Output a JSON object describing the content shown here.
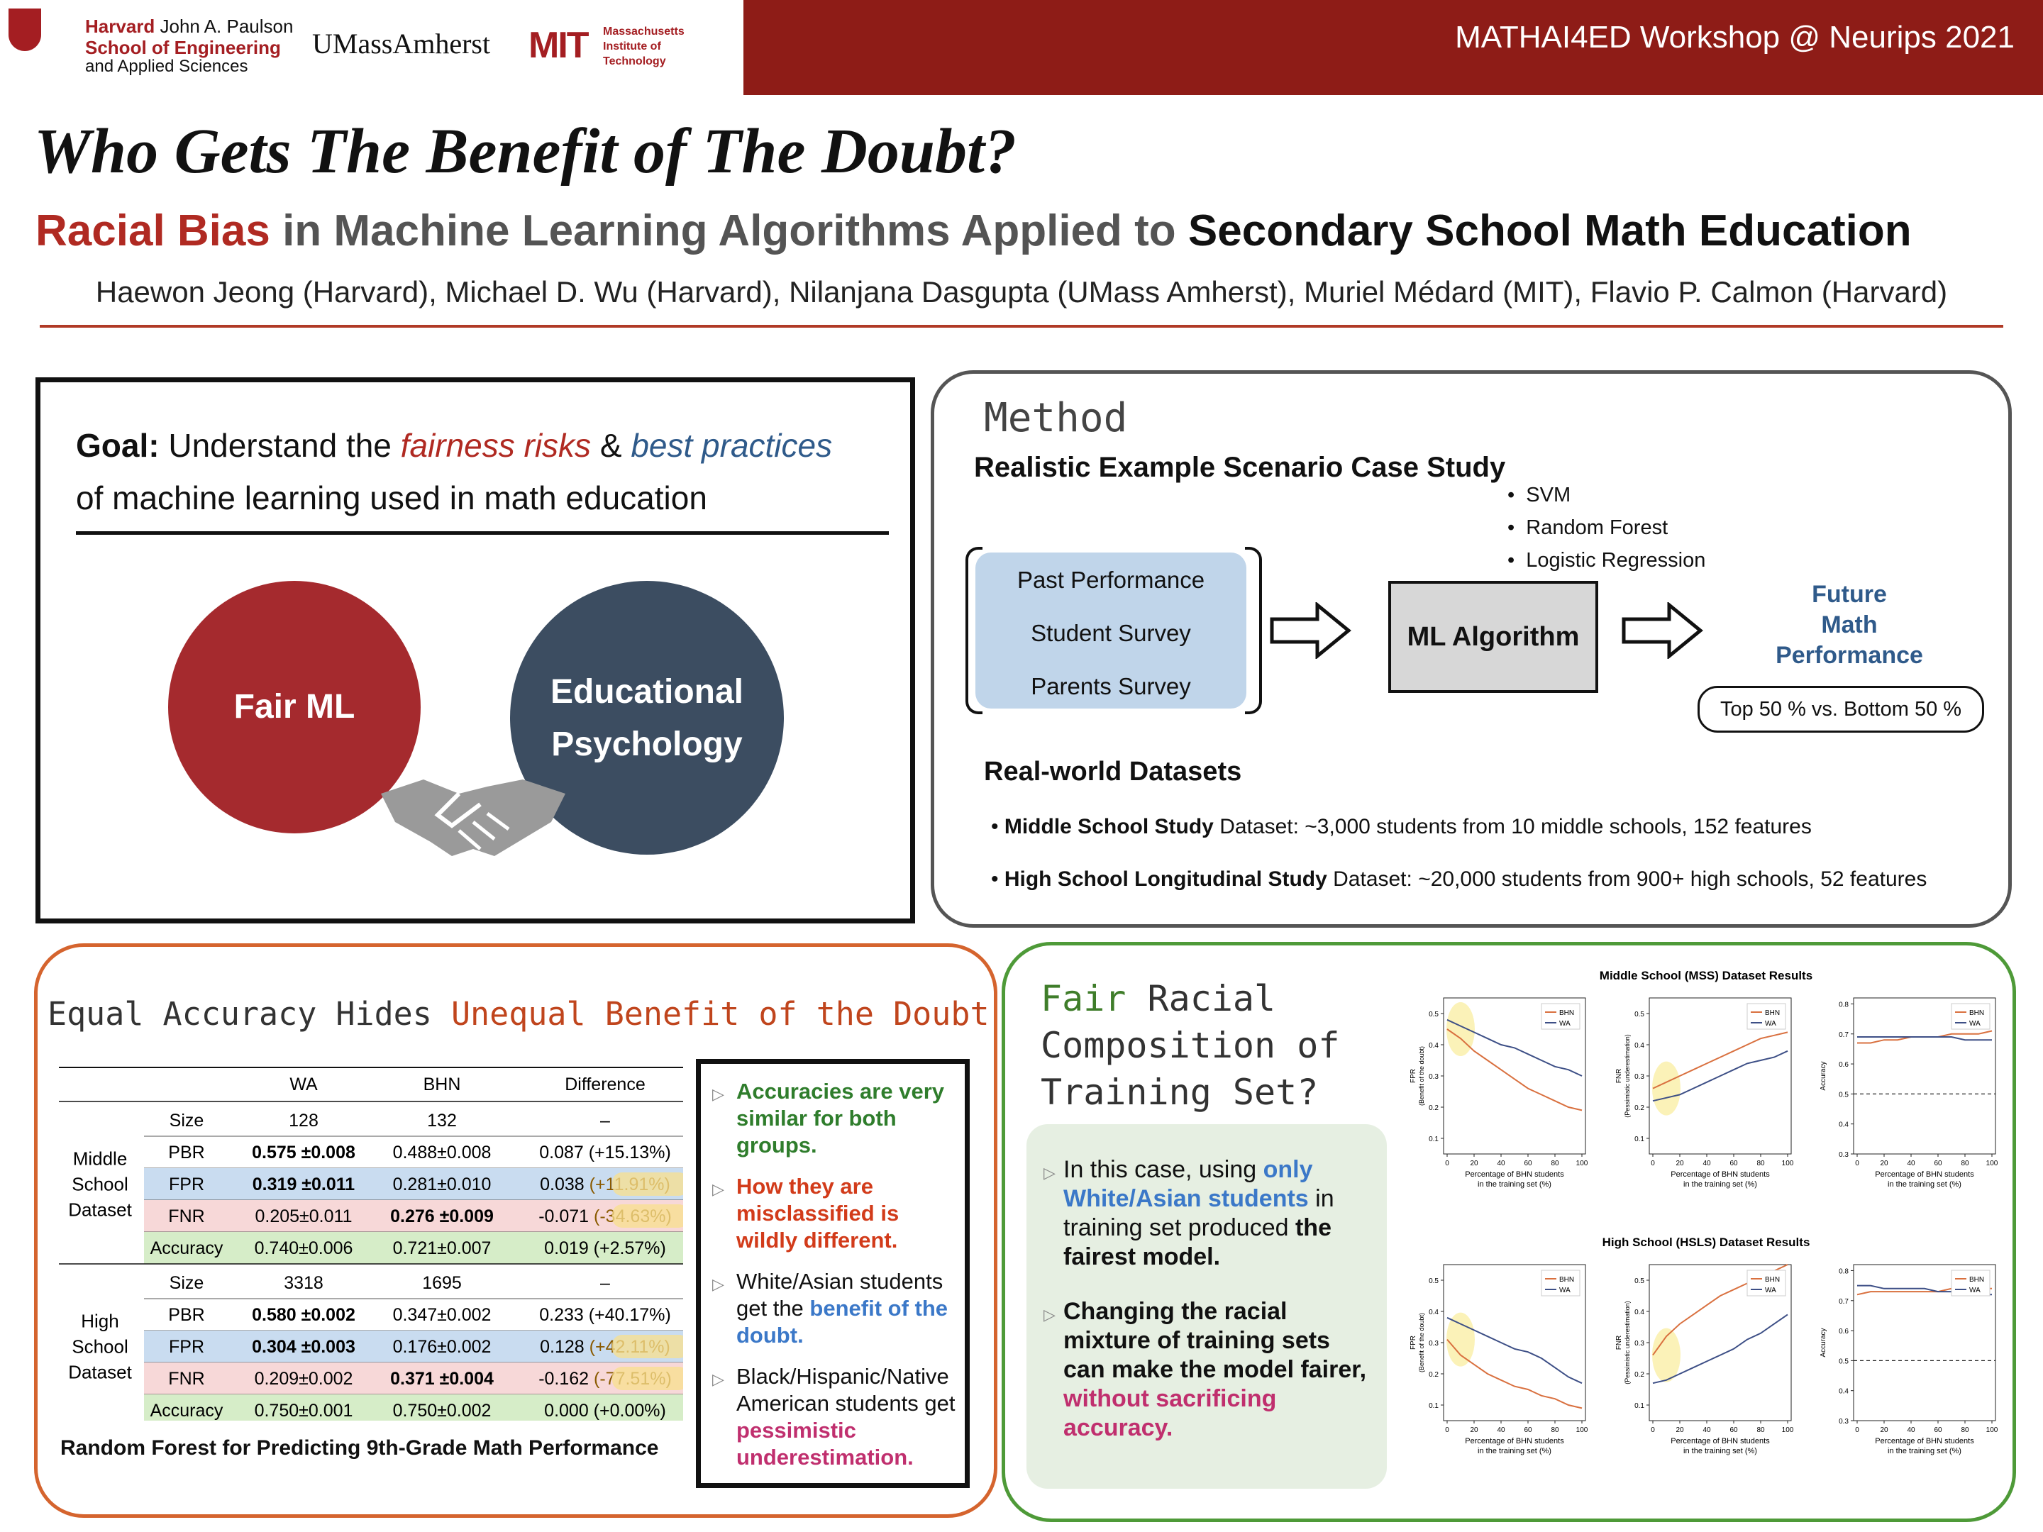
{
  "header": {
    "harvard_line1_bold": "Harvard",
    "harvard_line1_rest": "John A. Paulson",
    "harvard_line2": "School of Engineering",
    "harvard_line3": "and Applied Sciences",
    "umass": "UMassAmherst",
    "mit_mark": "MIT",
    "mit_text": [
      "Massachusetts",
      "Institute of",
      "Technology"
    ],
    "workshop": "MATHAI4ED Workshop @ Neurips 2021",
    "band_color": "#8e1c17"
  },
  "title": "Who Gets The Benefit of The Doubt?",
  "subtitle": {
    "part1": "Racial Bias",
    "part2": " in Machine Learning Algorithms Applied to ",
    "part3": "Secondary School Math Education"
  },
  "authors": "Haewon Jeong (Harvard), Michael D. Wu (Harvard), Nilanjana Dasgupta (UMass Amherst), Muriel Médard (MIT), Flavio P. Calmon (Harvard)",
  "goal": {
    "label": "Goal:",
    "text1": " Understand the ",
    "fairness": "fairness risks",
    "amp": " & ",
    "best": "best practices",
    "text2": "of machine learning used in math education",
    "circle1": "Fair ML",
    "circle2_line1": "Educational",
    "circle2_line2": "Psychology",
    "icon": "handshake-icon"
  },
  "method": {
    "title": "Method",
    "scenario": "Realistic Example Scenario Case Study",
    "inputs": [
      "Past Performance",
      "Student Survey",
      "Parents Survey"
    ],
    "algorithm": "ML Algorithm",
    "algorithms": [
      "SVM",
      "Random Forest",
      "Logistic Regression"
    ],
    "future": [
      "Future",
      "Math",
      "Performance"
    ],
    "topbottom": "Top 50 % vs. Bottom 50 %",
    "datasets_title": "Real-world Datasets",
    "ds1_bold": "Middle School Study",
    "ds1_rest": " Dataset: ~3,000 students from 10 middle schools, 152 features",
    "ds2_bold": "High School Longitudinal Study",
    "ds2_rest": " Dataset: ~20,000 students from 900+ high schools, 52 features"
  },
  "equal": {
    "title_part1": "Equal Accuracy Hides ",
    "title_part2": "Unequal Benefit of the Doubt",
    "caption": "Random Forest for Predicting 9th-Grade Math Performance",
    "table": {
      "columns": [
        "WA",
        "BHN",
        "Difference"
      ],
      "groups": [
        {
          "name": [
            "Middle",
            "School",
            "Dataset"
          ],
          "rows": [
            {
              "label": "Size",
              "wa": "128",
              "bhn": "132",
              "diff": "–",
              "diffpct": "",
              "bold": "",
              "color": "none"
            },
            {
              "label": "PBR",
              "wa": "0.575 ±0.008",
              "bhn": "0.488±0.008",
              "diff": "0.087 (+15.13%)",
              "diffpct": "",
              "bold": "wa",
              "color": "none"
            },
            {
              "label": "FPR",
              "wa": "0.319 ±0.011",
              "bhn": "0.281±0.010",
              "diff": "0.038 ",
              "diffpct": "(+11.91%)",
              "bold": "wa",
              "color": "blue"
            },
            {
              "label": "FNR",
              "wa": "0.205±0.011",
              "bhn": "0.276 ±0.009",
              "diff": "-0.071 ",
              "diffpct": "(-34.63%)",
              "bold": "bhn",
              "color": "pink"
            },
            {
              "label": "Accuracy",
              "wa": "0.740±0.006",
              "bhn": "0.721±0.007",
              "diff": "0.019 (+2.57%)",
              "diffpct": "",
              "bold": "",
              "color": "green"
            }
          ]
        },
        {
          "name": [
            "High",
            "School",
            "Dataset"
          ],
          "rows": [
            {
              "label": "Size",
              "wa": "3318",
              "bhn": "1695",
              "diff": "–",
              "diffpct": "",
              "bold": "",
              "color": "none"
            },
            {
              "label": "PBR",
              "wa": "0.580 ±0.002",
              "bhn": "0.347±0.002",
              "diff": "0.233 (+40.17%)",
              "diffpct": "",
              "bold": "wa",
              "color": "none"
            },
            {
              "label": "FPR",
              "wa": "0.304 ±0.003",
              "bhn": "0.176±0.002",
              "diff": "0.128 ",
              "diffpct": "(+42.11%)",
              "bold": "wa",
              "color": "blue"
            },
            {
              "label": "FNR",
              "wa": "0.209±0.002",
              "bhn": "0.371 ±0.004",
              "diff": "-0.162 ",
              "diffpct": "(-77.51%)",
              "bold": "bhn",
              "color": "pink"
            },
            {
              "label": "Accuracy",
              "wa": "0.750±0.001",
              "bhn": "0.750±0.002",
              "diff": "0.000 (+0.00%)",
              "diffpct": "",
              "bold": "",
              "color": "green"
            }
          ]
        }
      ]
    },
    "notes": {
      "n1": "Accuracies are very similar for both groups.",
      "n2": "How they are misclassified is wildly different.",
      "n3a": "White/Asian students get the ",
      "n3b": "benefit of the doubt.",
      "n4a": "Black/Hispanic/Native American students get ",
      "n4b": "pessimistic underestimation."
    }
  },
  "fair": {
    "title_g": "Fair",
    "title_rest1": " Racial",
    "title_rest2": "Composition of",
    "title_rest3": "Training Set?",
    "p1a": "In this case, using ",
    "p1b": "only White/Asian students",
    "p1c": " in training set produced ",
    "p1d": "the fairest model.",
    "p2a": "Changing the racial mixture of training sets can make the model fairer, ",
    "p2b": "without sacrificing accuracy."
  },
  "chart_data": [
    {
      "type": "line",
      "group_title": "Middle School (MSS) Dataset Results",
      "title": "",
      "xlabel": "Percentage of BHN students in the training set (%)",
      "ylabel": "FPR (Benefit of the doubt)",
      "x": [
        0,
        10,
        20,
        30,
        40,
        50,
        60,
        70,
        80,
        90,
        100
      ],
      "xticks": [
        0,
        20,
        40,
        60,
        80,
        100
      ],
      "yticks": [
        0.1,
        0.2,
        0.3,
        0.4,
        0.5
      ],
      "ylim": [
        0.05,
        0.55
      ],
      "series": [
        {
          "name": "BHN",
          "color": "#d9703f",
          "values": [
            0.45,
            0.42,
            0.38,
            0.35,
            0.32,
            0.29,
            0.26,
            0.24,
            0.22,
            0.2,
            0.19
          ]
        },
        {
          "name": "WA",
          "color": "#3d4f86",
          "values": [
            0.48,
            0.46,
            0.44,
            0.42,
            0.4,
            0.39,
            0.37,
            0.35,
            0.33,
            0.32,
            0.3
          ]
        }
      ],
      "legend": "top-right"
    },
    {
      "type": "line",
      "group_title": "",
      "title": "",
      "xlabel": "Percentage of BHN students in the training set (%)",
      "ylabel": "FNR (Pessimistic underestimation)",
      "x": [
        0,
        10,
        20,
        30,
        40,
        50,
        60,
        70,
        80,
        90,
        100
      ],
      "xticks": [
        0,
        20,
        40,
        60,
        80,
        100
      ],
      "yticks": [
        0.1,
        0.2,
        0.3,
        0.4,
        0.5
      ],
      "ylim": [
        0.05,
        0.55
      ],
      "series": [
        {
          "name": "BHN",
          "color": "#d9703f",
          "values": [
            0.26,
            0.28,
            0.3,
            0.32,
            0.34,
            0.36,
            0.38,
            0.4,
            0.42,
            0.43,
            0.44
          ]
        },
        {
          "name": "WA",
          "color": "#3d4f86",
          "values": [
            0.22,
            0.23,
            0.24,
            0.26,
            0.28,
            0.3,
            0.32,
            0.34,
            0.35,
            0.36,
            0.38
          ]
        }
      ],
      "legend": "top-right"
    },
    {
      "type": "line",
      "group_title": "",
      "title": "",
      "xlabel": "Percentage of BHN students in the training set (%)",
      "ylabel": "Accuracy",
      "x": [
        0,
        10,
        20,
        30,
        40,
        50,
        60,
        70,
        80,
        90,
        100
      ],
      "xticks": [
        0,
        20,
        40,
        60,
        80,
        100
      ],
      "yticks": [
        0.3,
        0.4,
        0.5,
        0.6,
        0.7,
        0.8
      ],
      "ylim": [
        0.3,
        0.82
      ],
      "baseline": 0.5,
      "series": [
        {
          "name": "BHN",
          "color": "#d9703f",
          "values": [
            0.67,
            0.67,
            0.68,
            0.68,
            0.69,
            0.69,
            0.69,
            0.7,
            0.7,
            0.7,
            0.71
          ]
        },
        {
          "name": "WA",
          "color": "#3d4f86",
          "values": [
            0.69,
            0.69,
            0.69,
            0.69,
            0.69,
            0.69,
            0.69,
            0.69,
            0.68,
            0.68,
            0.68
          ]
        }
      ],
      "legend": "top-right"
    },
    {
      "type": "line",
      "group_title": "High School (HSLS) Dataset Results",
      "title": "",
      "xlabel": "Percentage of BHN students in the training set (%)",
      "ylabel": "FPR (Benefit of the doubt)",
      "x": [
        0,
        10,
        20,
        30,
        40,
        50,
        60,
        70,
        80,
        90,
        100
      ],
      "xticks": [
        0,
        20,
        40,
        60,
        80,
        100
      ],
      "yticks": [
        0.1,
        0.2,
        0.3,
        0.4,
        0.5
      ],
      "ylim": [
        0.05,
        0.55
      ],
      "series": [
        {
          "name": "BHN",
          "color": "#d9703f",
          "values": [
            0.31,
            0.26,
            0.23,
            0.2,
            0.18,
            0.16,
            0.15,
            0.13,
            0.12,
            0.1,
            0.09
          ]
        },
        {
          "name": "WA",
          "color": "#3d4f86",
          "values": [
            0.38,
            0.36,
            0.34,
            0.32,
            0.3,
            0.28,
            0.27,
            0.25,
            0.22,
            0.19,
            0.17
          ]
        }
      ],
      "legend": "top-right"
    },
    {
      "type": "line",
      "group_title": "",
      "title": "",
      "xlabel": "Percentage of BHN students in the training set (%)",
      "ylabel": "FNR (Pessimistic underestimation)",
      "x": [
        0,
        10,
        20,
        30,
        40,
        50,
        60,
        70,
        80,
        90,
        100
      ],
      "xticks": [
        0,
        20,
        40,
        60,
        80,
        100
      ],
      "yticks": [
        0.1,
        0.2,
        0.3,
        0.4,
        0.5
      ],
      "ylim": [
        0.05,
        0.55
      ],
      "series": [
        {
          "name": "BHN",
          "color": "#d9703f",
          "values": [
            0.26,
            0.32,
            0.36,
            0.39,
            0.42,
            0.45,
            0.47,
            0.49,
            0.51,
            0.53,
            0.55
          ]
        },
        {
          "name": "WA",
          "color": "#3d4f86",
          "values": [
            0.17,
            0.18,
            0.2,
            0.22,
            0.24,
            0.26,
            0.28,
            0.31,
            0.33,
            0.36,
            0.39
          ]
        }
      ],
      "legend": "top-right"
    },
    {
      "type": "line",
      "group_title": "",
      "title": "",
      "xlabel": "Percentage of BHN students in the training set (%)",
      "ylabel": "Accuracy",
      "x": [
        0,
        10,
        20,
        30,
        40,
        50,
        60,
        70,
        80,
        90,
        100
      ],
      "xticks": [
        0,
        20,
        40,
        60,
        80,
        100
      ],
      "yticks": [
        0.3,
        0.4,
        0.5,
        0.6,
        0.7,
        0.8
      ],
      "ylim": [
        0.3,
        0.82
      ],
      "baseline": 0.5,
      "series": [
        {
          "name": "BHN",
          "color": "#d9703f",
          "values": [
            0.72,
            0.73,
            0.73,
            0.73,
            0.73,
            0.73,
            0.73,
            0.74,
            0.74,
            0.74,
            0.74
          ]
        },
        {
          "name": "WA",
          "color": "#3d4f86",
          "values": [
            0.75,
            0.75,
            0.74,
            0.74,
            0.74,
            0.74,
            0.73,
            0.73,
            0.72,
            0.72,
            0.72
          ]
        }
      ],
      "legend": "top-right"
    }
  ]
}
